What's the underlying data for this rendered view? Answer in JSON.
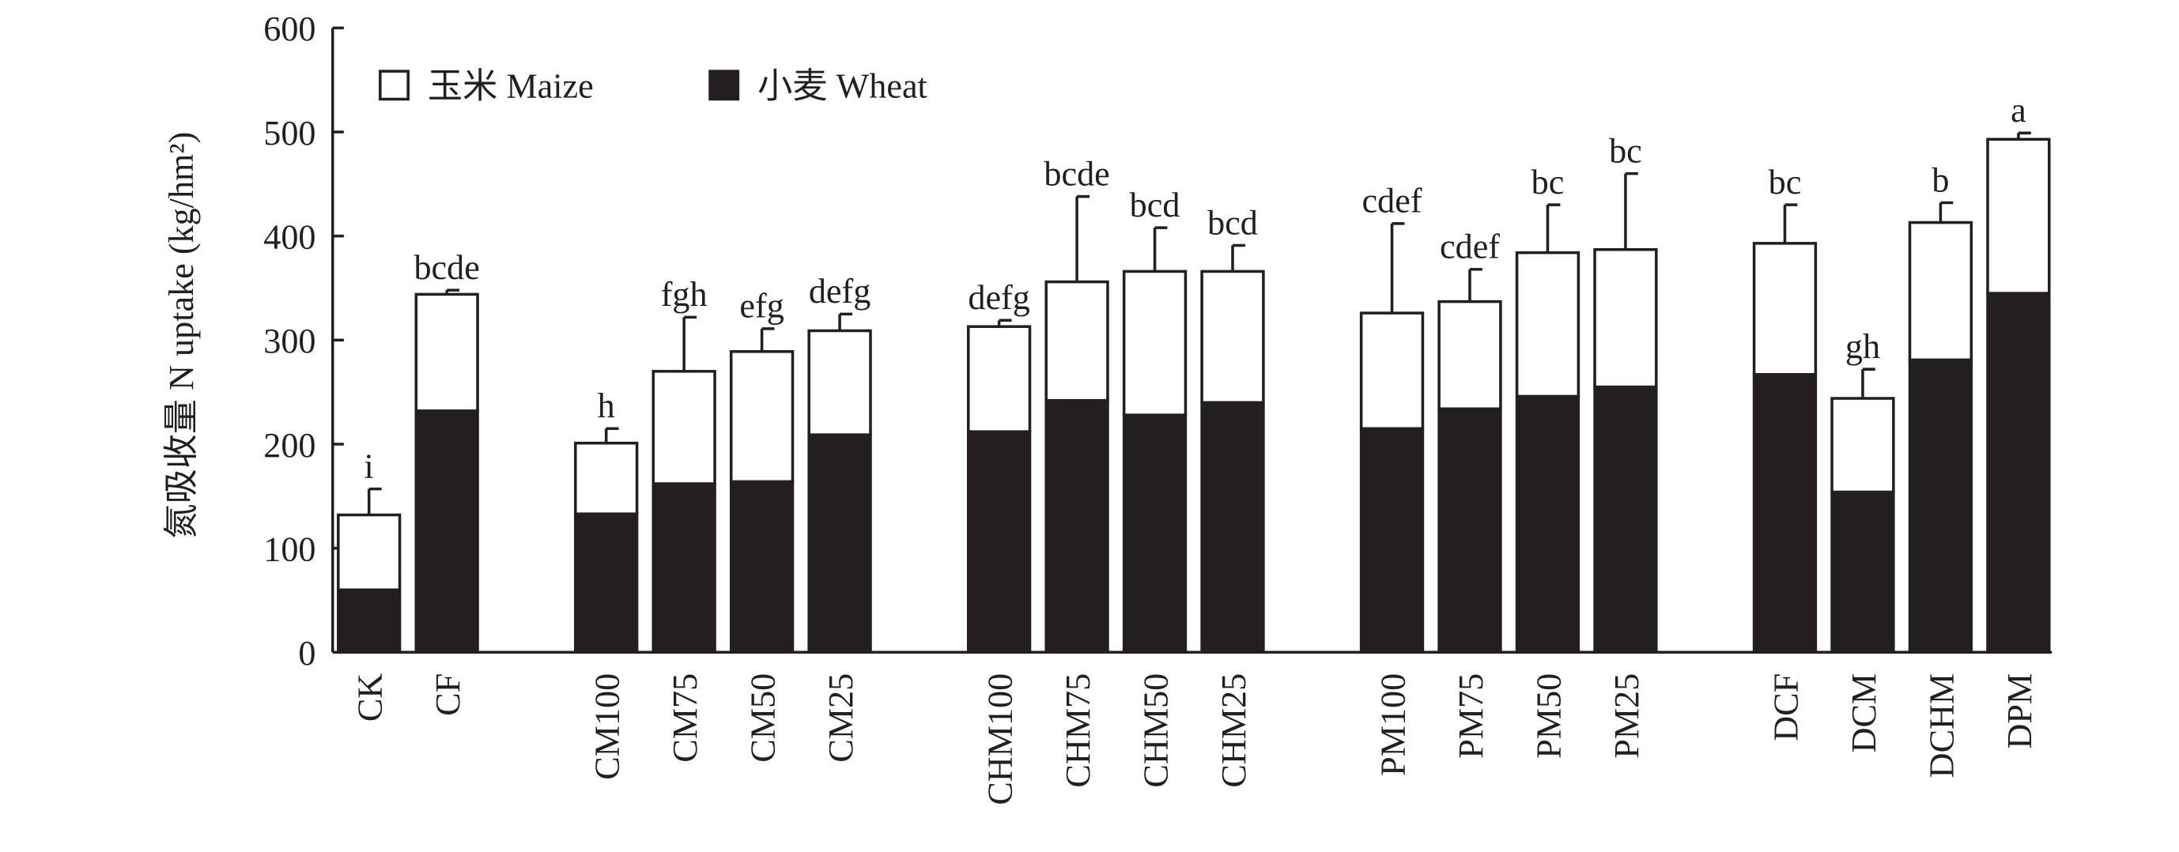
{
  "chart_data": {
    "type": "stacked_bar",
    "y_label": "氮吸收量 N uptake (kg/hm²)",
    "categories": [
      "CK",
      "CF",
      "CM100",
      "CM75",
      "CM50",
      "CM25",
      "CHM100",
      "CHM75",
      "CHM50",
      "CHM25",
      "PM100",
      "PM75",
      "PM50",
      "PM25",
      "DCF",
      "DCM",
      "DCHM",
      "DPM"
    ],
    "series": [
      {
        "name": "小麦 Wheat",
        "color": "#231f20",
        "values": [
          60,
          232,
          133,
          162,
          164,
          209,
          212,
          242,
          228,
          240,
          215,
          234,
          246,
          255,
          267,
          154,
          281,
          345
        ]
      },
      {
        "name": "玉米 Maize",
        "color": "#ffffff",
        "values": [
          72,
          112,
          68,
          108,
          125,
          100,
          101,
          114,
          138,
          126,
          111,
          103,
          138,
          132,
          126,
          90,
          132,
          148
        ],
        "errors": [
          25,
          4,
          14,
          52,
          22,
          16,
          6,
          82,
          42,
          25,
          86,
          31,
          46,
          73,
          37,
          28,
          19,
          6
        ]
      }
    ],
    "annotations": [
      "i",
      "bcde",
      "h",
      "fgh",
      "efg",
      "defg",
      "defg",
      "bcde",
      "bcd",
      "bcd",
      "cdef",
      "cdef",
      "bc",
      "bc",
      "bc",
      "gh",
      "b",
      "a"
    ],
    "ylim": [
      0,
      600
    ],
    "yticks": [
      0,
      100,
      200,
      300,
      400,
      500,
      600
    ]
  }
}
